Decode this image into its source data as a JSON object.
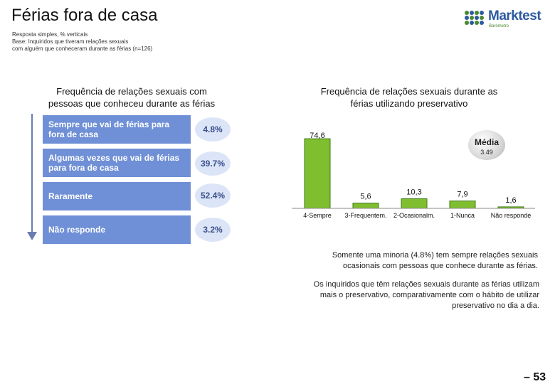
{
  "header": {
    "title": "Férias fora de casa",
    "meta_lines": [
      "Resposta simples, % verticais",
      "Base: Inquiridos que tiveram relações sexuais",
      "com alguém que conheceram durante as férias (n=126)"
    ]
  },
  "logo": {
    "brand": "Marktest",
    "sub": "Barómetro"
  },
  "left_panel": {
    "title_lines": [
      "Frequência de relações sexuais com",
      "pessoas que conheceu durante as férias"
    ],
    "rows": [
      {
        "label": "Sempre que vai de férias para fora de casa",
        "value": "4.8%"
      },
      {
        "label": "Algumas vezes que vai de férias para fora de casa",
        "value": "39.7%"
      },
      {
        "label": "Raramente",
        "value": "52.4%"
      },
      {
        "label": "Não responde",
        "value": "3.2%"
      }
    ]
  },
  "chart_data": {
    "type": "bar",
    "title": "Frequência de relações sexuais durante as férias utilizando preservativo",
    "title_lines": [
      "Frequência de relações sexuais durante as",
      "férias utilizando preservativo"
    ],
    "categories": [
      "4-Sempre",
      "3-Frequentem.",
      "2-Ocasionalm.",
      "1-Nunca",
      "Não responde"
    ],
    "values": [
      74.6,
      5.6,
      10.3,
      7.9,
      1.6
    ],
    "value_labels": [
      "74,6",
      "5,6",
      "10,3",
      "7,9",
      "1,6"
    ],
    "xlabel": "",
    "ylabel": "",
    "ylim": [
      0,
      80
    ],
    "grid": false,
    "colors": {
      "bar": "#7fbf2f",
      "bar_border": "#3f7a16"
    }
  },
  "media": {
    "label": "Média",
    "value": "3.49"
  },
  "notes": {
    "note1_lines": [
      "Somente uma minoria (4.8%) tem sempre relações sexuais",
      "ocasionais com pessoas que conhece durante as férias."
    ],
    "note2_lines": [
      "Os inquiridos que têm relações sexuais durante as férias utilizam",
      "mais o preservativo, comparativamente com o hábito de utilizar",
      "preservativo no dia a dia."
    ]
  },
  "page_number": "– 53"
}
